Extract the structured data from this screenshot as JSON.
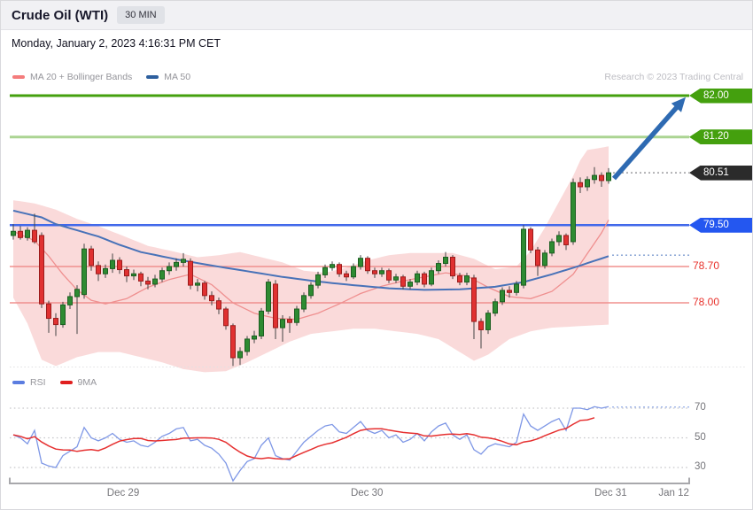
{
  "header": {
    "title": "Crude Oil (WTI)",
    "timeframe": "30 MIN"
  },
  "date_line": "Monday, January 2, 2023 4:16:31 PM CET",
  "credit": "Research © 2023 Trading Central",
  "legend_main": [
    {
      "label": "MA 20 + Bollinger Bands",
      "color": "#f47c7c"
    },
    {
      "label": "MA 50",
      "color": "#2d5f9e"
    }
  ],
  "legend_rsi": [
    {
      "label": "RSI",
      "color": "#5b7de0"
    },
    {
      "label": "9MA",
      "color": "#e01f1f"
    }
  ],
  "x_axis": {
    "labels": [
      {
        "text": "Dec 29",
        "x_index": 15.5
      },
      {
        "text": "Dec 30",
        "x_index": 49.9
      },
      {
        "text": "Dec 31",
        "x_index": 84.3
      },
      {
        "text": "Jan 12",
        "x_index": 93.2
      }
    ]
  },
  "chart_data": {
    "type": "candlestick",
    "title": "Crude Oil (WTI) 30 MIN — MA20 + Bollinger Bands, MA50, RSI + 9MA",
    "interval": "30 MIN",
    "price_range_visible": [
      76.6,
      82.3
    ],
    "levels": [
      {
        "text": "82.00",
        "price": 82.0,
        "kind": "resistance",
        "line": "solid",
        "line_color": "#44a00e",
        "line_width": 3,
        "line_opacity": 1,
        "label_bg": "#44a00e",
        "label_color": "#ffffff"
      },
      {
        "text": "81.20",
        "price": 81.2,
        "kind": "resistance",
        "line": "solid",
        "line_color": "#44a00e",
        "line_width": 3,
        "line_opacity": 0.45,
        "label_bg": "#44a00e",
        "label_color": "#ffffff"
      },
      {
        "text": "80.51",
        "price": 80.51,
        "kind": "last-price",
        "line": "dotted-connector",
        "line_color": "#9a9a9e",
        "line_width": 1.5,
        "line_opacity": 1,
        "label_bg": "#2b2b2b",
        "label_color": "#ffffff"
      },
      {
        "text": "79.50",
        "price": 79.5,
        "kind": "pivot",
        "line": "solid",
        "line_color": "#4168ea",
        "line_width": 2.5,
        "line_opacity": 1,
        "label_bg": "#2457f0",
        "label_color": "#ffffff"
      },
      {
        "text": "78.70",
        "price": 78.7,
        "kind": "support",
        "line": "solid",
        "line_color": "#f0908e",
        "line_width": 1.5,
        "line_opacity": 1,
        "label_bg": null,
        "label_color": "#e8312b"
      },
      {
        "text": "78.00",
        "price": 78.0,
        "kind": "support",
        "line": "solid",
        "line_color": "#f0908e",
        "line_width": 1.5,
        "line_opacity": 1,
        "label_bg": null,
        "label_color": "#e8312b"
      }
    ],
    "candles": [
      [
        79.3,
        79.52,
        79.22,
        79.38
      ],
      [
        79.38,
        79.48,
        79.22,
        79.26
      ],
      [
        79.26,
        79.46,
        79.2,
        79.4
      ],
      [
        79.4,
        79.72,
        79.14,
        79.18
      ],
      [
        79.3,
        79.36,
        77.9,
        77.98
      ],
      [
        77.98,
        78.04,
        77.42,
        77.7
      ],
      [
        77.7,
        77.8,
        77.36,
        77.58
      ],
      [
        77.58,
        78.02,
        77.52,
        77.96
      ],
      [
        77.96,
        78.2,
        77.88,
        78.12
      ],
      [
        78.12,
        78.34,
        77.4,
        78.26
      ],
      [
        78.16,
        79.14,
        78.08,
        79.04
      ],
      [
        79.04,
        79.1,
        78.62,
        78.72
      ],
      [
        78.72,
        78.8,
        78.42,
        78.56
      ],
      [
        78.56,
        78.74,
        78.48,
        78.66
      ],
      [
        78.66,
        78.95,
        78.58,
        78.82
      ],
      [
        78.82,
        78.88,
        78.56,
        78.64
      ],
      [
        78.64,
        78.7,
        78.4,
        78.52
      ],
      [
        78.52,
        78.64,
        78.44,
        78.56
      ],
      [
        78.56,
        78.6,
        78.32,
        78.42
      ],
      [
        78.42,
        78.5,
        78.26,
        78.36
      ],
      [
        78.36,
        78.54,
        78.3,
        78.46
      ],
      [
        78.46,
        78.68,
        78.4,
        78.62
      ],
      [
        78.62,
        78.78,
        78.54,
        78.7
      ],
      [
        78.7,
        78.86,
        78.62,
        78.78
      ],
      [
        78.78,
        78.96,
        78.7,
        78.84
      ],
      [
        78.8,
        78.86,
        78.26,
        78.34
      ],
      [
        78.34,
        78.46,
        78.22,
        78.38
      ],
      [
        78.38,
        78.42,
        78.06,
        78.14
      ],
      [
        78.14,
        78.22,
        77.95,
        78.04
      ],
      [
        78.04,
        78.1,
        77.78,
        77.88
      ],
      [
        77.88,
        77.92,
        77.48,
        77.56
      ],
      [
        77.56,
        77.6,
        76.78,
        76.94
      ],
      [
        76.94,
        77.14,
        76.8,
        77.06
      ],
      [
        77.06,
        77.36,
        76.98,
        77.3
      ],
      [
        77.3,
        77.46,
        77.22,
        77.36
      ],
      [
        77.36,
        77.9,
        77.3,
        77.84
      ],
      [
        77.84,
        78.46,
        77.78,
        78.4
      ],
      [
        78.36,
        78.44,
        77.3,
        77.52
      ],
      [
        77.52,
        77.76,
        77.25,
        77.68
      ],
      [
        77.68,
        77.74,
        77.42,
        77.62
      ],
      [
        77.62,
        77.94,
        77.56,
        77.88
      ],
      [
        77.88,
        78.2,
        77.82,
        78.14
      ],
      [
        78.14,
        78.4,
        78.08,
        78.34
      ],
      [
        78.34,
        78.6,
        78.28,
        78.54
      ],
      [
        78.54,
        78.74,
        78.48,
        78.68
      ],
      [
        78.68,
        78.8,
        78.62,
        78.74
      ],
      [
        78.74,
        78.78,
        78.5,
        78.56
      ],
      [
        78.56,
        78.62,
        78.42,
        78.5
      ],
      [
        78.5,
        78.76,
        78.46,
        78.7
      ],
      [
        78.7,
        78.92,
        78.64,
        78.86
      ],
      [
        78.86,
        78.9,
        78.56,
        78.62
      ],
      [
        78.62,
        78.68,
        78.48,
        78.56
      ],
      [
        78.56,
        78.68,
        78.5,
        78.62
      ],
      [
        78.62,
        78.66,
        78.38,
        78.44
      ],
      [
        78.44,
        78.56,
        78.38,
        78.5
      ],
      [
        78.5,
        78.54,
        78.26,
        78.32
      ],
      [
        78.32,
        78.46,
        78.26,
        78.4
      ],
      [
        78.4,
        78.62,
        78.34,
        78.56
      ],
      [
        78.56,
        78.6,
        78.3,
        78.36
      ],
      [
        78.36,
        78.68,
        78.32,
        78.62
      ],
      [
        78.62,
        78.82,
        78.56,
        78.76
      ],
      [
        78.76,
        78.98,
        78.7,
        78.88
      ],
      [
        78.88,
        78.92,
        78.46,
        78.52
      ],
      [
        78.52,
        78.58,
        78.34,
        78.4
      ],
      [
        78.4,
        78.58,
        78.34,
        78.52
      ],
      [
        78.48,
        78.54,
        77.3,
        77.64
      ],
      [
        77.64,
        77.7,
        77.12,
        77.48
      ],
      [
        77.48,
        77.86,
        77.4,
        77.8
      ],
      [
        77.8,
        78.08,
        77.74,
        78.02
      ],
      [
        78.02,
        78.3,
        77.96,
        78.24
      ],
      [
        78.24,
        78.32,
        78.1,
        78.2
      ],
      [
        78.2,
        78.42,
        78.14,
        78.36
      ],
      [
        78.34,
        79.5,
        78.28,
        79.42
      ],
      [
        79.42,
        79.46,
        78.96,
        79.02
      ],
      [
        79.02,
        79.08,
        78.52,
        78.72
      ],
      [
        78.72,
        79.02,
        78.66,
        78.96
      ],
      [
        78.96,
        79.24,
        78.9,
        79.18
      ],
      [
        79.18,
        79.38,
        79.1,
        79.3
      ],
      [
        79.3,
        79.34,
        79.02,
        79.12
      ],
      [
        79.18,
        80.4,
        79.12,
        80.32
      ],
      [
        80.32,
        80.42,
        80.12,
        80.24
      ],
      [
        80.24,
        80.44,
        80.16,
        80.38
      ],
      [
        80.38,
        80.62,
        80.3,
        80.46
      ],
      [
        80.46,
        80.52,
        80.24,
        80.36
      ],
      [
        80.36,
        80.6,
        80.3,
        80.51
      ]
    ],
    "overlays": {
      "ma50_points": [
        [
          0,
          79.78
        ],
        [
          4,
          79.65
        ],
        [
          6,
          79.52
        ],
        [
          9,
          79.4
        ],
        [
          12,
          79.28
        ],
        [
          15,
          79.12
        ],
        [
          18,
          78.98
        ],
        [
          23,
          78.84
        ],
        [
          28,
          78.72
        ],
        [
          33,
          78.61
        ],
        [
          38,
          78.5
        ],
        [
          43,
          78.41
        ],
        [
          48,
          78.34
        ],
        [
          53,
          78.28
        ],
        [
          58,
          78.25
        ],
        [
          63,
          78.26
        ],
        [
          68,
          78.31
        ],
        [
          72,
          78.4
        ],
        [
          76,
          78.55
        ],
        [
          80,
          78.72
        ],
        [
          84,
          78.9
        ]
      ],
      "ma20_points": [
        [
          0,
          79.38
        ],
        [
          3,
          79.2
        ],
        [
          5,
          78.9
        ],
        [
          7,
          78.55
        ],
        [
          9,
          78.25
        ],
        [
          11,
          78.05
        ],
        [
          13,
          77.98
        ],
        [
          16,
          78.08
        ],
        [
          19,
          78.3
        ],
        [
          22,
          78.45
        ],
        [
          25,
          78.55
        ],
        [
          28,
          78.35
        ],
        [
          31,
          78.0
        ],
        [
          34,
          77.8
        ],
        [
          37,
          77.7
        ],
        [
          40,
          77.68
        ],
        [
          43,
          77.8
        ],
        [
          46,
          77.98
        ],
        [
          49,
          78.18
        ],
        [
          52,
          78.32
        ],
        [
          55,
          78.42
        ],
        [
          58,
          78.5
        ],
        [
          61,
          78.58
        ],
        [
          64,
          78.52
        ],
        [
          67,
          78.3
        ],
        [
          70,
          78.12
        ],
        [
          73,
          78.08
        ],
        [
          76,
          78.22
        ],
        [
          79,
          78.55
        ],
        [
          81,
          78.95
        ],
        [
          83,
          79.35
        ],
        [
          84,
          79.6
        ]
      ],
      "bb_upper_points": [
        [
          0,
          79.98
        ],
        [
          3,
          79.92
        ],
        [
          6,
          79.8
        ],
        [
          9,
          79.62
        ],
        [
          12,
          79.48
        ],
        [
          15,
          79.32
        ],
        [
          19,
          79.1
        ],
        [
          23,
          78.98
        ],
        [
          26,
          78.88
        ],
        [
          29,
          78.92
        ],
        [
          32,
          78.98
        ],
        [
          35,
          78.88
        ],
        [
          38,
          78.78
        ],
        [
          41,
          78.62
        ],
        [
          44,
          78.58
        ],
        [
          47,
          78.68
        ],
        [
          50,
          78.82
        ],
        [
          53,
          78.92
        ],
        [
          56,
          78.96
        ],
        [
          59,
          78.96
        ],
        [
          62,
          78.96
        ],
        [
          65,
          78.85
        ],
        [
          68,
          78.65
        ],
        [
          71,
          78.7
        ],
        [
          73,
          79.0
        ],
        [
          75,
          79.45
        ],
        [
          77,
          79.95
        ],
        [
          79,
          80.45
        ],
        [
          80,
          80.75
        ],
        [
          81,
          80.95
        ],
        [
          84,
          81.02
        ]
      ],
      "bb_lower_points": [
        [
          0,
          78.1
        ],
        [
          2,
          77.6
        ],
        [
          4,
          76.9
        ],
        [
          6,
          76.78
        ],
        [
          9,
          76.95
        ],
        [
          12,
          77.05
        ],
        [
          15,
          77.05
        ],
        [
          18,
          76.95
        ],
        [
          21,
          76.85
        ],
        [
          24,
          76.72
        ],
        [
          27,
          76.66
        ],
        [
          30,
          76.68
        ],
        [
          33,
          76.85
        ],
        [
          36,
          77.05
        ],
        [
          39,
          77.25
        ],
        [
          42,
          77.4
        ],
        [
          45,
          77.45
        ],
        [
          48,
          77.5
        ],
        [
          51,
          77.5
        ],
        [
          54,
          77.45
        ],
        [
          57,
          77.4
        ],
        [
          60,
          77.3
        ],
        [
          63,
          77.05
        ],
        [
          65,
          76.88
        ],
        [
          67,
          77.0
        ],
        [
          70,
          77.3
        ],
        [
          73,
          77.45
        ],
        [
          76,
          77.52
        ],
        [
          80,
          77.55
        ],
        [
          84,
          77.58
        ]
      ],
      "ma50_projection_price": 78.92,
      "last_price_connector": 80.51
    },
    "arrow": {
      "from_price": 80.4,
      "to_price": 81.97,
      "color": "#2e6ab2"
    },
    "style": {
      "up_fill": "#2e8b32",
      "up_stroke": "#1b5e20",
      "down_fill": "#e03131",
      "down_stroke": "#9b1c1c",
      "wick": "#444444",
      "band_fill": "rgba(244,166,166,0.42)",
      "ma20_color": "#ef8f8f",
      "ma50_color": "#4872b8",
      "rsi_color": "#7e97e6",
      "rsi_ma_color": "#e63030",
      "grid_color": "#c6c6ca",
      "axis_color": "#a8a8ac"
    },
    "rsi": {
      "values": [
        52,
        50,
        46,
        55,
        33,
        31,
        30,
        38,
        41,
        44,
        57,
        50,
        48,
        50,
        53,
        49,
        47,
        48,
        45,
        44,
        47,
        51,
        53,
        56,
        57,
        48,
        49,
        45,
        43,
        39,
        33,
        21,
        28,
        34,
        36,
        45,
        50,
        38,
        36,
        35,
        41,
        47,
        51,
        55,
        58,
        59,
        54,
        53,
        57,
        61,
        55,
        53,
        55,
        50,
        52,
        47,
        49,
        53,
        48,
        54,
        58,
        60,
        52,
        49,
        52,
        42,
        39,
        44,
        46,
        45,
        44,
        47,
        66,
        58,
        55,
        58,
        61,
        63,
        55,
        70,
        70,
        69,
        71,
        70,
        71
      ],
      "ma_period": 9,
      "gridlines": [
        70,
        50,
        30
      ],
      "grid_labels": [
        "70",
        "50",
        "30"
      ],
      "projection_value": 70.8,
      "range": [
        15,
        85
      ]
    }
  }
}
